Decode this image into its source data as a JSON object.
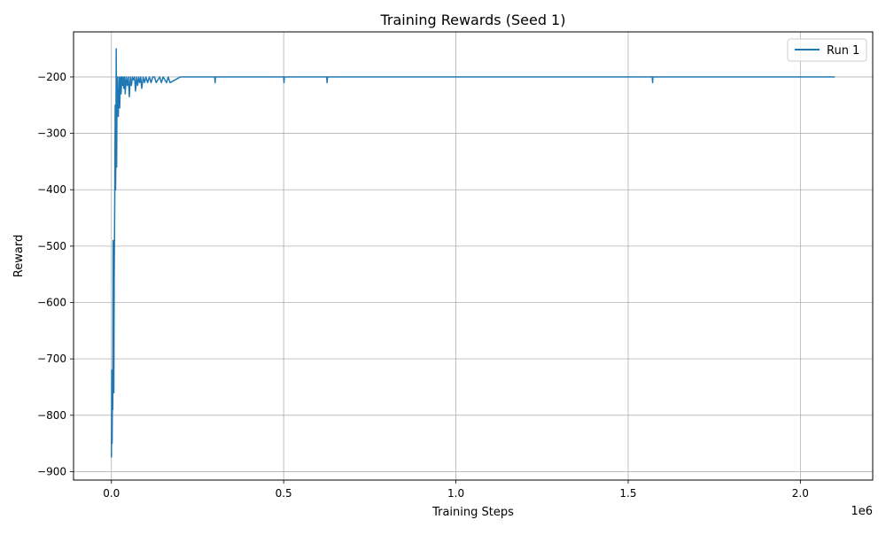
{
  "chart_data": {
    "type": "line",
    "title": "Training Rewards (Seed 1)",
    "xlabel": "Training Steps",
    "ylabel": "Reward",
    "x_multiplier_label": "1e6",
    "xlim": [
      -110000,
      2210000
    ],
    "ylim": [
      -915,
      -120
    ],
    "x_ticks": [
      0,
      500000,
      1000000,
      1500000,
      2000000
    ],
    "x_tick_labels": [
      "0.0",
      "0.5",
      "1.0",
      "1.5",
      "2.0"
    ],
    "y_ticks": [
      -900,
      -800,
      -700,
      -600,
      -500,
      -400,
      -300,
      -200
    ],
    "y_tick_labels": [
      "−900",
      "−800",
      "−700",
      "−600",
      "−500",
      "−400",
      "−300",
      "−200"
    ],
    "grid": true,
    "legend_position": "top-right",
    "series": [
      {
        "name": "Run 1",
        "color": "#1f77b4",
        "x": [
          0,
          1000,
          2000,
          3000,
          4000,
          5000,
          6000,
          7000,
          8000,
          9000,
          10000,
          11000,
          12000,
          13000,
          14000,
          15000,
          16000,
          17000,
          18000,
          19000,
          20000,
          22000,
          24000,
          26000,
          28000,
          30000,
          32000,
          34000,
          36000,
          38000,
          40000,
          43000,
          46000,
          49000,
          52000,
          55000,
          58000,
          61000,
          64000,
          67000,
          70000,
          73000,
          76000,
          79000,
          82000,
          85000,
          88000,
          92000,
          96000,
          100000,
          105000,
          110000,
          115000,
          120000,
          125000,
          130000,
          140000,
          145000,
          150000,
          160000,
          165000,
          170000,
          200000,
          250000,
          300000,
          301000,
          302000,
          400000,
          500000,
          501000,
          502000,
          600000,
          625000,
          626000,
          627000,
          800000,
          1000000,
          1200000,
          1400000,
          1570000,
          1571000,
          1572000,
          1800000,
          2000000,
          2100000
        ],
        "y": [
          -875,
          -720,
          -850,
          -760,
          -790,
          -490,
          -600,
          -760,
          -560,
          -480,
          -380,
          -250,
          -400,
          -330,
          -150,
          -360,
          -265,
          -200,
          -260,
          -220,
          -270,
          -200,
          -255,
          -200,
          -230,
          -200,
          -215,
          -200,
          -220,
          -200,
          -230,
          -200,
          -215,
          -200,
          -235,
          -200,
          -215,
          -200,
          -205,
          -200,
          -225,
          -200,
          -215,
          -200,
          -210,
          -200,
          -220,
          -200,
          -210,
          -200,
          -210,
          -200,
          -210,
          -200,
          -200,
          -210,
          -200,
          -210,
          -200,
          -210,
          -200,
          -210,
          -200,
          -200,
          -200,
          -210,
          -200,
          -200,
          -200,
          -210,
          -200,
          -200,
          -200,
          -210,
          -200,
          -200,
          -200,
          -200,
          -200,
          -200,
          -210,
          -200,
          -200,
          -200,
          -200
        ]
      }
    ]
  }
}
